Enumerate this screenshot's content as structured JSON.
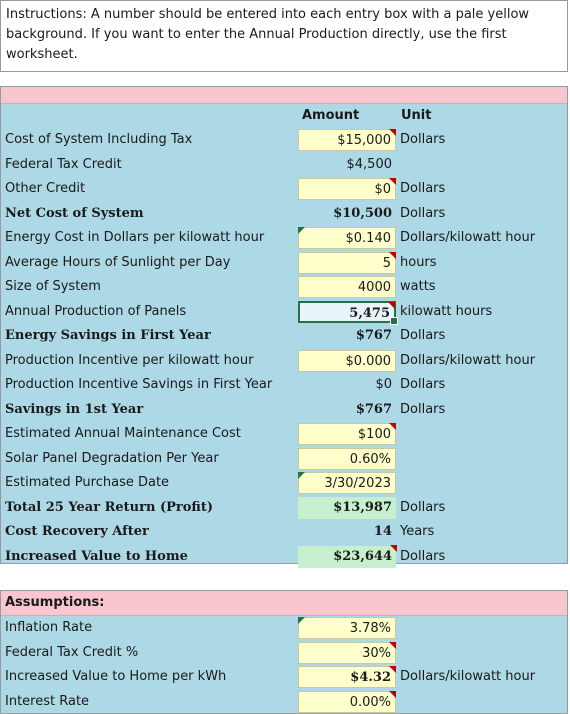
{
  "instructions": "Instructions: A number should be entered into each entry box with a pale yellow background.  If you want to enter the Annual Production directly, use the first worksheet.",
  "headers": {
    "amount": "Amount",
    "unit": "Unit"
  },
  "rows": [
    {
      "label": "Cost of System Including Tax",
      "amount": "$15,000",
      "unit": "Dollars"
    },
    {
      "label": "Federal Tax Credit",
      "amount": "$4,500",
      "unit": ""
    },
    {
      "label": "Other Credit",
      "amount": "$0",
      "unit": "Dollars"
    },
    {
      "label": "Net Cost of System",
      "amount": "$10,500",
      "unit": "Dollars"
    },
    {
      "label": "Energy Cost in Dollars per kilowatt hour",
      "amount": "$0.140",
      "unit": "Dollars/kilowatt hour"
    },
    {
      "label": "Average Hours of Sunlight per Day",
      "amount": "5",
      "unit": "hours"
    },
    {
      "label": "Size of System",
      "amount": "4000",
      "unit": "watts"
    },
    {
      "label": "Annual Production of Panels",
      "amount": "5,475",
      "unit": "kilowatt hours"
    },
    {
      "label": "Energy Savings in First Year",
      "amount": "$767",
      "unit": "Dollars"
    },
    {
      "label": "Production Incentive per kilowatt hour",
      "amount": "$0.000",
      "unit": "Dollars/kilowatt hour"
    },
    {
      "label": "Production Incentive Savings in First Year",
      "amount": "$0",
      "unit": "Dollars"
    },
    {
      "label": "Savings in 1st Year",
      "amount": "$767",
      "unit": "Dollars"
    },
    {
      "label": "Estimated Annual Maintenance Cost",
      "amount": "$100",
      "unit": ""
    },
    {
      "label": "Solar Panel Degradation Per Year",
      "amount": "0.60%",
      "unit": ""
    },
    {
      "label": "Estimated Purchase Date",
      "amount": "3/30/2023",
      "unit": ""
    },
    {
      "label": "Total 25 Year Return (Profit)",
      "amount": "$13,987",
      "unit": "Dollars"
    },
    {
      "label": "Cost Recovery After",
      "amount": "14",
      "unit": "Years"
    },
    {
      "label": "Increased Value to Home",
      "amount": "$23,644",
      "unit": "Dollars"
    }
  ],
  "assumptions": {
    "title": "Assumptions:",
    "rows": [
      {
        "label": "Inflation Rate",
        "amount": "3.78%",
        "unit": ""
      },
      {
        "label": "Federal Tax Credit %",
        "amount": "30%",
        "unit": ""
      },
      {
        "label": "Increased Value to Home per kWh",
        "amount": "$4.32",
        "unit": "Dollars/kilowatt hour"
      },
      {
        "label": "Interest Rate",
        "amount": "0.00%",
        "unit": ""
      }
    ]
  },
  "colors": {
    "entry": "#ffffcc",
    "section": "#add8e6",
    "header": "#f9c6cf",
    "result": "#c6efce",
    "comment": "#c00000",
    "selection": "#217346"
  }
}
